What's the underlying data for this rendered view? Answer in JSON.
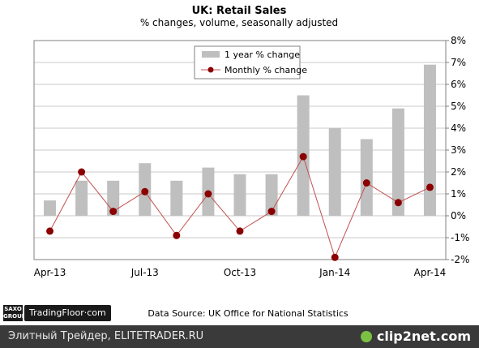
{
  "chart_data": {
    "type": "bar+line",
    "title": "UK: Retail Sales",
    "subtitle": "% changes, volume, seasonally adjusted",
    "x_tick_labels": [
      "Apr-13",
      "Jul-13",
      "Oct-13",
      "Jan-14",
      "Apr-14"
    ],
    "categories": [
      "Apr-13",
      "May-13",
      "Jun-13",
      "Jul-13",
      "Aug-13",
      "Sep-13",
      "Oct-13",
      "Nov-13",
      "Dec-13",
      "Jan-14",
      "Feb-14",
      "Mar-14",
      "Apr-14"
    ],
    "y_tick_labels": [
      "8%",
      "7%",
      "6%",
      "5%",
      "4%",
      "3%",
      "2%",
      "1%",
      "0%",
      "-1%",
      "-2%"
    ],
    "ylim": [
      -2,
      8
    ],
    "y_axis_side": "right",
    "grid": true,
    "legend_position": "top-center",
    "series": [
      {
        "name": "1 year % change",
        "type": "bar",
        "color": "#bfbfbf",
        "values": [
          0.7,
          1.6,
          1.6,
          2.4,
          1.6,
          2.2,
          1.9,
          1.9,
          5.5,
          4.0,
          3.5,
          4.9,
          6.9
        ]
      },
      {
        "name": "Monthly % change",
        "type": "line",
        "color": "#8b0000",
        "line_color": "#c05050",
        "values": [
          -0.7,
          2.0,
          0.2,
          1.1,
          -0.9,
          1.0,
          -0.7,
          0.2,
          2.7,
          -1.9,
          1.5,
          0.6,
          1.3
        ]
      }
    ],
    "source_note": "Data Source: UK Office for National Statistics"
  },
  "branding": {
    "saxo_line1": "SAXO",
    "saxo_line2": "GROUP",
    "tradingfloor": "TradingFloor·com"
  },
  "footer": {
    "left_text": "Элитный Трейдер, ELITETRADER.RU",
    "right_text": "clip2net.com"
  }
}
